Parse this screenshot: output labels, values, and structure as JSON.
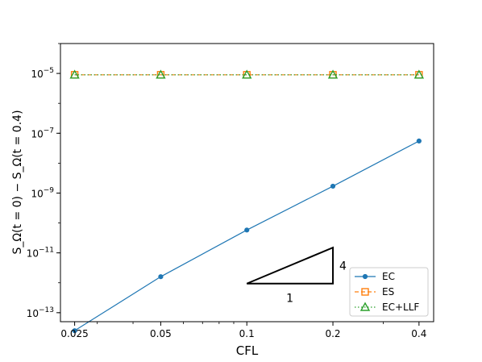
{
  "chart_data": {
    "type": "line",
    "xlabel": "CFL",
    "ylabel": "S_Ω(t = 0) − S_Ω(t = 0.4)",
    "x_scale": "log",
    "y_scale": "log",
    "xlim": [
      0.0223,
      0.45
    ],
    "ylim": [
      5e-14,
      0.0001
    ],
    "x": [
      0.025,
      0.05,
      0.1,
      0.2,
      0.4
    ],
    "x_tick_labels": [
      "0.025",
      "0.05",
      "0.1",
      "0.2",
      "0.4"
    ],
    "y_ticks": [
      {
        "value": 1e-13,
        "mantissa": "10",
        "exp": "−13"
      },
      {
        "value": 1e-11,
        "mantissa": "10",
        "exp": "−11"
      },
      {
        "value": 1e-09,
        "mantissa": "10",
        "exp": "−9"
      },
      {
        "value": 1e-07,
        "mantissa": "10",
        "exp": "−7"
      },
      {
        "value": 1e-05,
        "mantissa": "10",
        "exp": "−5"
      }
    ],
    "series": [
      {
        "name": "EC",
        "color": "#1f77b4",
        "linestyle": "solid",
        "marker": "circle",
        "values": [
          2.5e-14,
          1.6e-12,
          5.8e-11,
          1.7e-09,
          5.5e-08
        ]
      },
      {
        "name": "ES",
        "color": "#ff7f0e",
        "linestyle": "dashed",
        "marker": "square",
        "values": [
          9e-06,
          9e-06,
          9e-06,
          9e-06,
          9e-06
        ]
      },
      {
        "name": "EC+LLF",
        "color": "#2ca02c",
        "linestyle": "dotted",
        "marker": "triangle",
        "values": [
          9e-06,
          9e-06,
          9e-06,
          9e-06,
          9e-06
        ]
      }
    ],
    "slope_triangle": {
      "x": [
        0.1,
        0.2
      ],
      "y_base": 9.4e-13,
      "y_top": 1.5e-11,
      "run_label": "1",
      "rise_label": "4"
    },
    "grid": false,
    "legend": "lower-right"
  }
}
